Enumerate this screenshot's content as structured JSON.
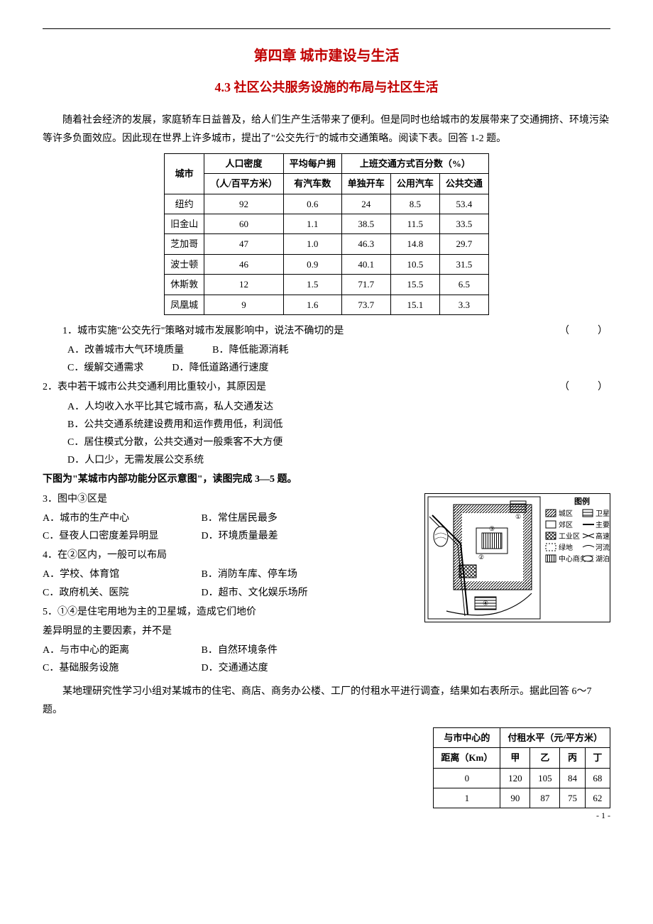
{
  "header": {
    "chapter_title": "第四章 城市建设与生活",
    "section_title": "4.3 社区公共服务设施的布局与社区生活"
  },
  "intro_text": "随着社会经济的发展，家庭轿车日益普及，给人们生产生活带来了便利。但是同时也给城市的发展带来了交通拥挤、环境污染等许多负面效应。因此现在世界上许多城市，提出了\"公交先行\"的城市交通策略。阅读下表。回答 1-2 题。",
  "table1": {
    "headers": {
      "city": "城市",
      "density": "人口密度",
      "density_unit": "（人/百平方米）",
      "cars": "平均每户拥",
      "cars_unit": "有汽车数",
      "commute": "上班交通方式百分数（%）",
      "c_solo": "单独开车",
      "c_share": "公用汽车",
      "c_public": "公共交通"
    },
    "rows": [
      {
        "city": "纽约",
        "density": "92",
        "cars": "0.6",
        "solo": "24",
        "share": "8.5",
        "pub": "53.4"
      },
      {
        "city": "旧金山",
        "density": "60",
        "cars": "1.1",
        "solo": "38.5",
        "share": "11.5",
        "pub": "33.5"
      },
      {
        "city": "芝加哥",
        "density": "47",
        "cars": "1.0",
        "solo": "46.3",
        "share": "14.8",
        "pub": "29.7"
      },
      {
        "city": "波士顿",
        "density": "46",
        "cars": "0.9",
        "solo": "40.1",
        "share": "10.5",
        "pub": "31.5"
      },
      {
        "city": "休斯敦",
        "density": "12",
        "cars": "1.5",
        "solo": "71.7",
        "share": "15.5",
        "pub": "6.5"
      },
      {
        "city": "凤凰城",
        "density": "9",
        "cars": "1.6",
        "solo": "73.7",
        "share": "15.1",
        "pub": "3.3"
      }
    ]
  },
  "q1": {
    "stem": "1．城市实施\"公交先行\"策略对城市发展影响中，说法不确切的是",
    "paren": "（　　）",
    "A": "A．改善城市大气环境质量",
    "B": "B．降低能源消耗",
    "C": "C．缓解交通需求",
    "D": "D．降低道路通行速度"
  },
  "q2": {
    "stem": "2．表中若干城市公共交通利用比重较小，其原因是",
    "paren": "（　　）",
    "A": "A．人均收入水平比其它城市高，私人交通发达",
    "B": "B．公共交通系统建设费用和运作费用低，利润低",
    "C": "C．居住模式分散，公共交通对一般乘客不大方便",
    "D": "D．人口少，无需发展公交系统"
  },
  "fig_intro": "下图为\"某城市内部功能分区示意图\"，读图完成 3—5 题。",
  "q3": {
    "stem": "3．图中③区是",
    "A": "A．城市的生产中心",
    "B": "B．常住居民最多",
    "C": "C．昼夜人口密度差异明显",
    "D": "D．环境质量最差"
  },
  "q4": {
    "stem": "4．在②区内，一般可以布局",
    "A": "A．学校、体育馆",
    "B": "B．消防车库、停车场",
    "C": "C．政府机关、医院",
    "D": "D．超市、文化娱乐场所"
  },
  "q5": {
    "stem_a": "5．①④是住宅用地为主的卫星城，造成它们地价",
    "stem_b": "差异明显的主要因素，并不是",
    "A": "A．与市中心的距离",
    "B": "B．自然环境条件",
    "C": "C．基础服务设施",
    "D": "D．交通通达度"
  },
  "legend": {
    "title": "图例",
    "items": [
      "城区",
      "卫星城",
      "郊区",
      "主要公",
      "工业区",
      "高速公",
      "绿地",
      "河流",
      "中心商务区",
      "湖泊"
    ]
  },
  "rent_intro": "某地理研究性学习小组对某城市的住宅、商店、商务办公楼、工厂的付租水平进行调查，结果如右表所示。据此回答 6～7 题。",
  "rent_table": {
    "h_dist": "与市中心的",
    "h_dist2": "距离（Km）",
    "h_rent": "付租水平（元/平方米）",
    "cols": [
      "甲",
      "乙",
      "丙",
      "丁"
    ],
    "rows": [
      {
        "d": "0",
        "v": [
          "120",
          "105",
          "84",
          "68"
        ]
      },
      {
        "d": "1",
        "v": [
          "90",
          "87",
          "75",
          "62"
        ]
      }
    ]
  },
  "page_number": "- 1 -"
}
